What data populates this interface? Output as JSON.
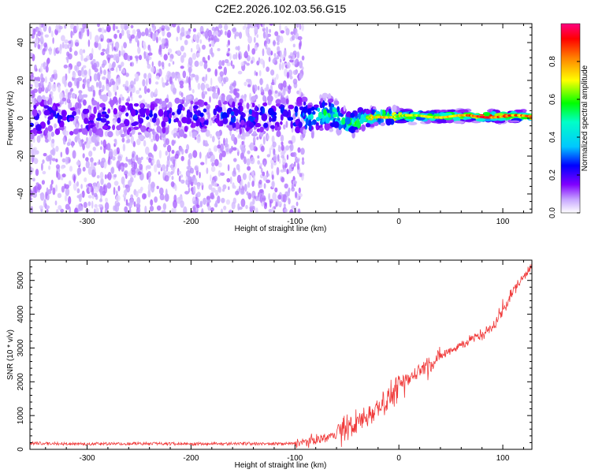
{
  "page_title": "C2E2.2026.102.03.56.G15",
  "colors": {
    "snr_line": "#f03a3a",
    "axis": "#000000",
    "background": "#ffffff"
  },
  "chart_data": [
    {
      "type": "heatmap",
      "xlabel": "Height of straight line (km)",
      "ylabel": "Frequency (Hz)",
      "xlim": [
        -355,
        128
      ],
      "ylim": [
        -50,
        50
      ],
      "x_ticks": [
        -300,
        -200,
        -100,
        0,
        100
      ],
      "y_ticks": [
        -40,
        -20,
        0,
        20,
        40
      ],
      "colorbar": {
        "label": "Normalized spectral amplitude",
        "range": [
          0,
          1
        ],
        "ticks": [
          "0.0",
          "0.2",
          "0.4",
          "0.6",
          "0.8"
        ],
        "tick_values": [
          0.0,
          0.2,
          0.4,
          0.6,
          0.8
        ],
        "colormap": "rainbow (white → violet → blue → cyan → green → yellow → red → magenta)"
      },
      "ridge": [
        {
          "x": -355,
          "center": 0,
          "width": 7,
          "amplitude": 0.25
        },
        {
          "x": -200,
          "center": 1,
          "width": 6,
          "amplitude": 0.25
        },
        {
          "x": -100,
          "center": 1,
          "width": 6,
          "amplitude": 0.3
        },
        {
          "x": -80,
          "center": 2,
          "width": 5,
          "amplitude": 0.45
        },
        {
          "x": -60,
          "center": 0,
          "width": 4,
          "amplitude": 0.55
        },
        {
          "x": -40,
          "center": -1,
          "width": 3,
          "amplitude": 0.6
        },
        {
          "x": -20,
          "center": 1,
          "width": 2,
          "amplitude": 0.75
        },
        {
          "x": 0,
          "center": 1,
          "width": 2,
          "amplitude": 0.7
        },
        {
          "x": 20,
          "center": 1,
          "width": 1.5,
          "amplitude": 0.65
        },
        {
          "x": 60,
          "center": 1,
          "width": 1.5,
          "amplitude": 0.8
        },
        {
          "x": 80,
          "center": 1,
          "width": 1.5,
          "amplitude": 0.9
        },
        {
          "x": 100,
          "center": 1,
          "width": 1.5,
          "amplitude": 0.85
        },
        {
          "x": 128,
          "center": 1,
          "width": 1.5,
          "amplitude": 0.8
        }
      ]
    },
    {
      "type": "line",
      "xlabel": "Height of straight line (km)",
      "ylabel": "SNR (10 * v/v)",
      "xlim": [
        -355,
        128
      ],
      "ylim": [
        0,
        5600
      ],
      "x_ticks": [
        -300,
        -200,
        -100,
        0,
        100
      ],
      "y_ticks": [
        0,
        1000,
        2000,
        3000,
        4000,
        5000
      ],
      "series": [
        {
          "color": "#f03a3a",
          "x": [
            -355,
            -300,
            -250,
            -200,
            -150,
            -110,
            -90,
            -70,
            -50,
            -40,
            -30,
            -20,
            -10,
            0,
            10,
            20,
            30,
            40,
            50,
            60,
            70,
            80,
            90,
            100,
            110,
            120,
            128
          ],
          "y": [
            180,
            160,
            170,
            160,
            170,
            160,
            220,
            350,
            600,
            800,
            1000,
            1300,
            1500,
            1900,
            2100,
            2350,
            2550,
            2750,
            2950,
            3100,
            3250,
            3400,
            3600,
            4100,
            4700,
            5100,
            5500
          ]
        }
      ]
    }
  ]
}
